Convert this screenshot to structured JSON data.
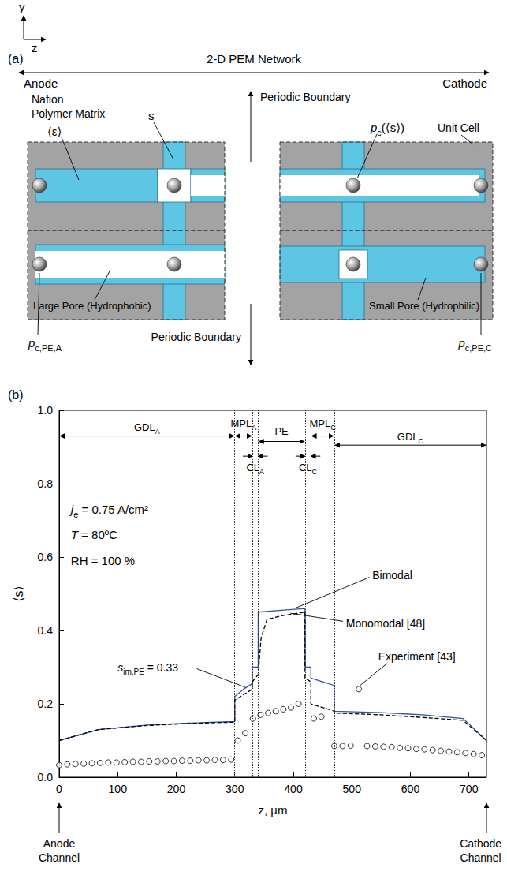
{
  "diagram": {
    "panel_label": "(a)",
    "axes": {
      "y": "y",
      "z": "z"
    },
    "header": {
      "left": "Anode",
      "center": "2-D PEM Network",
      "right": "Cathode"
    },
    "labels": {
      "matrix": [
        "Nafion",
        "Polymer Matrix"
      ],
      "porosity": "⟨ε⟩",
      "saturation": "s",
      "periodic_top": "Periodic Boundary",
      "periodic_bottom": "Periodic Boundary",
      "node_pressure": {
        "text": "p",
        "sub": "c",
        "after": "(⟨s⟩)"
      },
      "unit_cell": "Unit Cell",
      "large_pore": "Large Pore (Hydrophobic)",
      "small_pore": "Small Pore (Hydrophilic)",
      "anode_pressure": {
        "text": "p",
        "sub": "c,PE,A"
      },
      "cathode_pressure": {
        "text": "p",
        "sub": "c,PE,C"
      }
    }
  },
  "chart_data": {
    "type": "line",
    "panel_label": "(b)",
    "x_label": "z, µm",
    "y_label": "⟨s⟩",
    "xlim": [
      0,
      730
    ],
    "xticks": [
      0,
      100,
      200,
      300,
      400,
      500,
      600,
      700
    ],
    "ylim": [
      0,
      1
    ],
    "yticks": [
      {
        "value": 0,
        "label": "0.0"
      },
      0.2,
      0.4,
      0.6,
      0.8,
      {
        "value": 1,
        "label": "1.0"
      }
    ],
    "grid": false,
    "conditions": [
      {
        "text": "j",
        "sub": "e",
        "after": " = 0.75 A/cm²"
      },
      {
        "text": "T",
        "after": " = 80ºC"
      },
      {
        "text": "RH",
        "after": " = 100 %"
      }
    ],
    "annotation": {
      "text": "s",
      "sub": "im,PE",
      "after": " = 0.33"
    },
    "channel_labels": [
      [
        "Anode",
        "Channel"
      ],
      [
        "Cathode",
        "Channel"
      ]
    ],
    "regions": [
      {
        "label": {
          "text": "GDL",
          "sub": "A"
        },
        "from": 0,
        "to": 300
      },
      {
        "label": {
          "text": "MPL",
          "sub": "A"
        },
        "from": 300,
        "to": 330
      },
      {
        "label": {
          "text": "CL",
          "sub": "A"
        },
        "from": 330,
        "to": 340
      },
      {
        "label": "PE",
        "from": 340,
        "to": 420
      },
      {
        "label": {
          "text": "CL",
          "sub": "C"
        },
        "from": 420,
        "to": 430
      },
      {
        "label": {
          "text": "MPL",
          "sub": "C"
        },
        "from": 430,
        "to": 470
      },
      {
        "label": {
          "text": "GDL",
          "sub": "C"
        },
        "from": 470,
        "to": 730
      }
    ],
    "series": [
      {
        "name": "Bimodal",
        "type": "line",
        "color": "#2f55a4",
        "line_style": "solid",
        "x": [
          0,
          67,
          150,
          230,
          300,
          300,
          315,
          330,
          330,
          340,
          340,
          380,
          420,
          420,
          430,
          430,
          450,
          470,
          470,
          550,
          620,
          690,
          730
        ],
        "values": [
          0.1,
          0.13,
          0.142,
          0.148,
          0.152,
          0.22,
          0.24,
          0.255,
          0.3,
          0.3,
          0.45,
          0.455,
          0.46,
          0.3,
          0.3,
          0.27,
          0.26,
          0.25,
          0.18,
          0.176,
          0.17,
          0.16,
          0.1
        ]
      },
      {
        "name": "Monomodal [48]",
        "type": "line",
        "color": "#000000",
        "line_style": "dashed",
        "x": [
          0,
          67,
          150,
          230,
          300,
          300,
          330,
          330,
          340,
          345,
          355,
          380,
          420,
          420,
          430,
          430,
          470,
          470,
          550,
          620,
          690,
          730
        ],
        "values": [
          0.1,
          0.13,
          0.141,
          0.147,
          0.15,
          0.21,
          0.24,
          0.26,
          0.28,
          0.38,
          0.43,
          0.44,
          0.45,
          0.27,
          0.26,
          0.2,
          0.18,
          0.175,
          0.17,
          0.163,
          0.155,
          0.1
        ]
      },
      {
        "name": "Experiment [43]",
        "type": "scatter",
        "color": "#000000",
        "marker": "circle",
        "x": [
          0,
          14,
          28,
          42,
          56,
          70,
          84,
          98,
          112,
          126,
          140,
          154,
          168,
          182,
          196,
          210,
          224,
          238,
          252,
          266,
          280,
          294,
          305,
          318,
          331,
          344,
          357,
          370,
          383,
          396,
          409,
          435,
          448,
          470,
          484,
          498,
          512,
          526,
          540,
          554,
          568,
          582,
          596,
          610,
          624,
          638,
          652,
          666,
          680,
          694,
          708,
          722
        ],
        "values": [
          0.033,
          0.035,
          0.036,
          0.037,
          0.038,
          0.039,
          0.04,
          0.04,
          0.041,
          0.042,
          0.042,
          0.043,
          0.043,
          0.044,
          0.044,
          0.045,
          0.045,
          0.046,
          0.046,
          0.047,
          0.047,
          0.048,
          0.1,
          0.12,
          0.16,
          0.17,
          0.175,
          0.18,
          0.185,
          0.19,
          0.2,
          0.16,
          0.165,
          0.085,
          0.085,
          0.086,
          0.24,
          0.085,
          0.084,
          0.083,
          0.082,
          0.08,
          0.079,
          0.077,
          0.076,
          0.074,
          0.072,
          0.07,
          0.068,
          0.066,
          0.063,
          0.06
        ]
      }
    ]
  }
}
